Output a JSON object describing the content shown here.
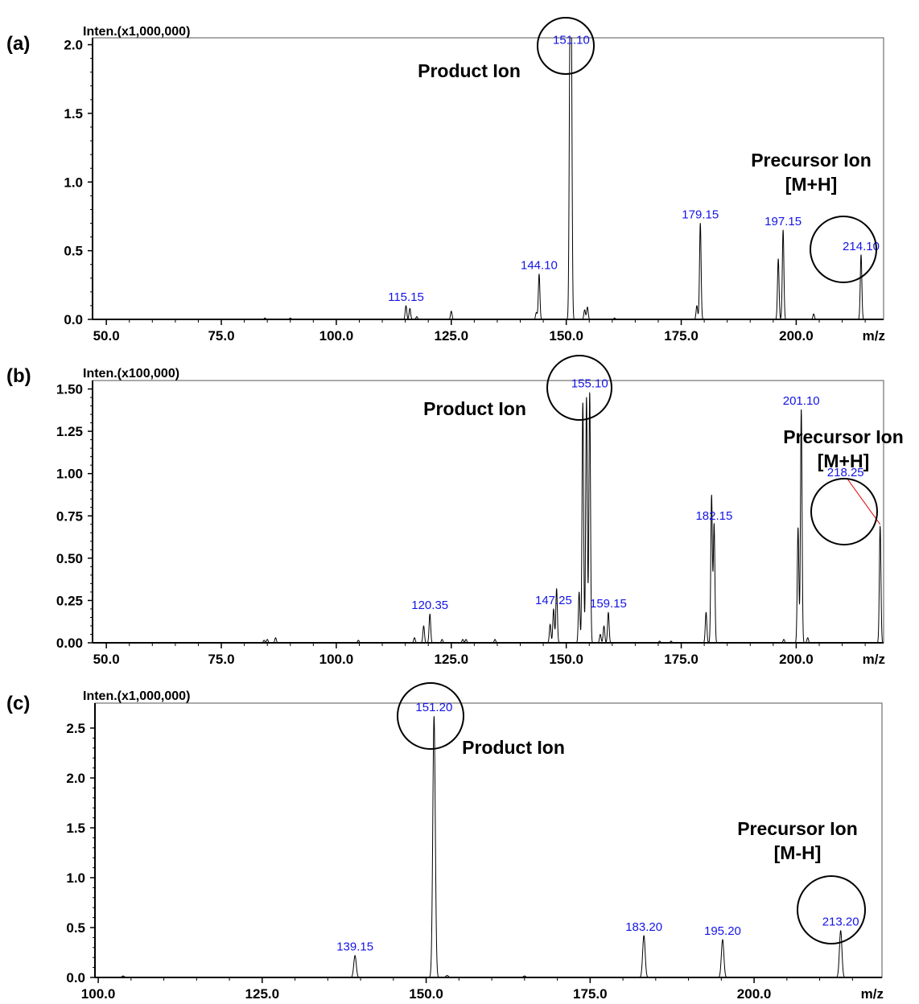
{
  "chart_data": [
    {
      "panel": "(a)",
      "type": "line",
      "ylabel": "Inten.(x1,000,000)",
      "xlabel": "m/z",
      "xlim": [
        47,
        219
      ],
      "ylim": [
        0,
        2.05
      ],
      "xticks": [
        50,
        75,
        100,
        125,
        150,
        175,
        200
      ],
      "xtick_labels": [
        "50.0",
        "75.0",
        "100.0",
        "125.0",
        "150.0",
        "175.0",
        "200.0"
      ],
      "yticks": [
        0,
        0.5,
        1.0,
        1.5,
        2.0
      ],
      "ytick_labels": [
        "0.0",
        "0.5",
        "1.0",
        "1.5",
        "2.0"
      ],
      "peaks": [
        {
          "mz": 84.5,
          "intensity": 0.01
        },
        {
          "mz": 90.0,
          "intensity": 0.01
        },
        {
          "mz": 115.15,
          "intensity": 0.1,
          "label": "115.15"
        },
        {
          "mz": 116.0,
          "intensity": 0.08
        },
        {
          "mz": 117.5,
          "intensity": 0.02
        },
        {
          "mz": 125.0,
          "intensity": 0.06
        },
        {
          "mz": 143.5,
          "intensity": 0.05
        },
        {
          "mz": 144.1,
          "intensity": 0.33,
          "label": "144.10"
        },
        {
          "mz": 150.8,
          "intensity": 1.85
        },
        {
          "mz": 151.1,
          "intensity": 1.97,
          "label": "151.10"
        },
        {
          "mz": 154.0,
          "intensity": 0.07
        },
        {
          "mz": 154.6,
          "intensity": 0.09
        },
        {
          "mz": 160.5,
          "intensity": 0.01
        },
        {
          "mz": 178.4,
          "intensity": 0.1
        },
        {
          "mz": 179.15,
          "intensity": 0.7,
          "label": "179.15"
        },
        {
          "mz": 196.1,
          "intensity": 0.44
        },
        {
          "mz": 197.15,
          "intensity": 0.65,
          "label": "197.15"
        },
        {
          "mz": 203.8,
          "intensity": 0.04
        },
        {
          "mz": 214.1,
          "intensity": 0.47,
          "label": "214.10"
        }
      ],
      "annotations": [
        {
          "text": [
            "Product Ion"
          ]
        },
        {
          "text": [
            "Precursor Ion",
            "[M+H]"
          ]
        }
      ]
    },
    {
      "panel": "(b)",
      "type": "line",
      "ylabel": "Inten.(x100,000)",
      "xlabel": "m/z",
      "xlim": [
        47,
        219
      ],
      "ylim": [
        0,
        1.55
      ],
      "xticks": [
        50,
        75,
        100,
        125,
        150,
        175,
        200
      ],
      "xtick_labels": [
        "50.0",
        "75.0",
        "100.0",
        "125.0",
        "150.0",
        "175.0",
        "200.0"
      ],
      "yticks": [
        0,
        0.25,
        0.5,
        0.75,
        1.0,
        1.25,
        1.5
      ],
      "ytick_labels": [
        "0.00",
        "0.25",
        "0.50",
        "0.75",
        "1.00",
        "1.25",
        "1.50"
      ],
      "peaks": [
        {
          "mz": 84.3,
          "intensity": 0.015
        },
        {
          "mz": 85.0,
          "intensity": 0.02
        },
        {
          "mz": 86.8,
          "intensity": 0.03
        },
        {
          "mz": 104.8,
          "intensity": 0.015
        },
        {
          "mz": 117.0,
          "intensity": 0.03
        },
        {
          "mz": 119.0,
          "intensity": 0.1
        },
        {
          "mz": 120.35,
          "intensity": 0.17,
          "label": "120.35"
        },
        {
          "mz": 123.0,
          "intensity": 0.02
        },
        {
          "mz": 127.5,
          "intensity": 0.02
        },
        {
          "mz": 128.2,
          "intensity": 0.02
        },
        {
          "mz": 134.5,
          "intensity": 0.02
        },
        {
          "mz": 146.5,
          "intensity": 0.11
        },
        {
          "mz": 147.25,
          "intensity": 0.2,
          "label": "147.25"
        },
        {
          "mz": 147.9,
          "intensity": 0.32
        },
        {
          "mz": 152.8,
          "intensity": 0.3
        },
        {
          "mz": 153.6,
          "intensity": 1.42
        },
        {
          "mz": 154.4,
          "intensity": 1.45
        },
        {
          "mz": 155.1,
          "intensity": 1.48,
          "label": "155.10"
        },
        {
          "mz": 157.4,
          "intensity": 0.05
        },
        {
          "mz": 158.2,
          "intensity": 0.1
        },
        {
          "mz": 159.15,
          "intensity": 0.18,
          "label": "159.15"
        },
        {
          "mz": 170.3,
          "intensity": 0.01
        },
        {
          "mz": 172.8,
          "intensity": 0.01
        },
        {
          "mz": 180.4,
          "intensity": 0.18
        },
        {
          "mz": 181.6,
          "intensity": 0.87
        },
        {
          "mz": 182.15,
          "intensity": 0.7,
          "label": "182.15"
        },
        {
          "mz": 197.3,
          "intensity": 0.02
        },
        {
          "mz": 200.4,
          "intensity": 0.68
        },
        {
          "mz": 201.1,
          "intensity": 1.38,
          "label": "201.10"
        },
        {
          "mz": 202.5,
          "intensity": 0.03
        },
        {
          "mz": 218.25,
          "intensity": 0.69,
          "label": "218.25"
        }
      ],
      "annotations": [
        {
          "text": [
            "Product Ion"
          ]
        },
        {
          "text": [
            "Precursor Ion",
            "[M+H]"
          ]
        }
      ]
    },
    {
      "panel": "(c)",
      "type": "line",
      "ylabel": "Inten.(x1,000,000)",
      "xlabel": "m/z",
      "xlim": [
        99.5,
        219.5
      ],
      "ylim": [
        0,
        2.75
      ],
      "xticks": [
        100,
        125,
        150,
        175,
        200
      ],
      "xtick_labels": [
        "100.0",
        "125.0",
        "150.0",
        "175.0",
        "200.0"
      ],
      "yticks": [
        0,
        0.5,
        1.0,
        1.5,
        2.0,
        2.5
      ],
      "ytick_labels": [
        "0.0",
        "0.5",
        "1.0",
        "1.5",
        "2.0",
        "2.5"
      ],
      "peaks": [
        {
          "mz": 103.8,
          "intensity": 0.015
        },
        {
          "mz": 139.15,
          "intensity": 0.22,
          "label": "139.15"
        },
        {
          "mz": 151.2,
          "intensity": 2.62,
          "label": "151.20"
        },
        {
          "mz": 153.2,
          "intensity": 0.02
        },
        {
          "mz": 165.0,
          "intensity": 0.015
        },
        {
          "mz": 183.2,
          "intensity": 0.42,
          "label": "183.20"
        },
        {
          "mz": 195.2,
          "intensity": 0.38,
          "label": "195.20"
        },
        {
          "mz": 213.2,
          "intensity": 0.47,
          "label": "213.20"
        }
      ],
      "annotations": [
        {
          "text": [
            "Product Ion"
          ]
        },
        {
          "text": [
            "Precursor Ion",
            "[M-H]"
          ]
        }
      ]
    }
  ]
}
